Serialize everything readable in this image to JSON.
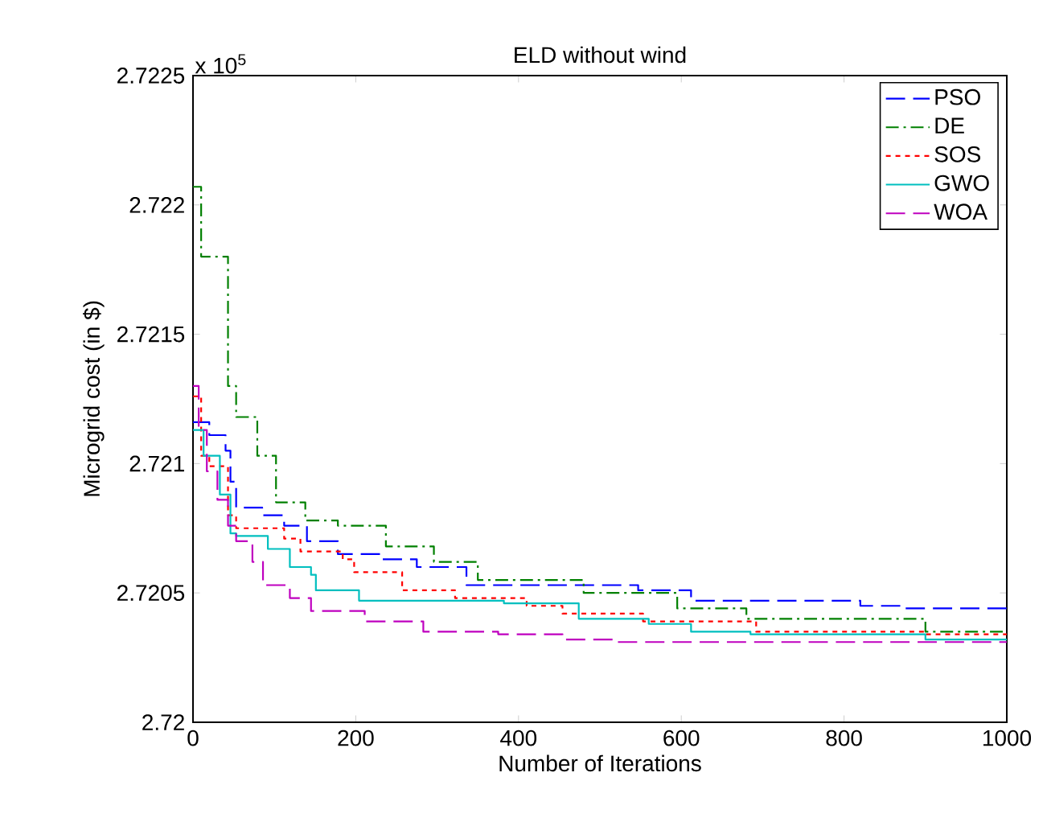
{
  "chart_data": {
    "type": "step",
    "title": "ELD without wind",
    "xlabel": "Number of Iterations",
    "ylabel": "Microgrid cost (in $)",
    "annotations": [
      "x 10$^{5}$"
    ],
    "xlim": [
      0,
      1000
    ],
    "ylim": [
      2.72,
      2.7225
    ],
    "xticks": [
      0,
      200,
      400,
      600,
      800,
      1000
    ],
    "yticks": [
      2.72,
      2.7205,
      2.721,
      2.7215,
      2.722,
      2.7225
    ],
    "grid": false,
    "legend": "top right",
    "series": [
      {
        "name": "PSO",
        "color": "#0000ff",
        "line_style": "dashed",
        "x": [
          0,
          20,
          40,
          46,
          53,
          85,
          112,
          140,
          178,
          231,
          275,
          336,
          547,
          612,
          820,
          870,
          1000
        ],
        "values": [
          2.72116,
          2.72111,
          2.72105,
          2.72093,
          2.72083,
          2.7208,
          2.72076,
          2.7207,
          2.72065,
          2.72063,
          2.7206,
          2.72053,
          2.72051,
          2.72047,
          2.72045,
          2.72044,
          2.72044
        ]
      },
      {
        "name": "DE",
        "color": "#008000",
        "line_style": "dashdot",
        "x": [
          0,
          10,
          43,
          53,
          79,
          102,
          138,
          178,
          237,
          296,
          350,
          480,
          595,
          680,
          900,
          1000
        ],
        "values": [
          2.72207,
          2.7218,
          2.7213,
          2.72118,
          2.72103,
          2.72085,
          2.72078,
          2.72076,
          2.72068,
          2.72062,
          2.72055,
          2.7205,
          2.72044,
          2.7204,
          2.72035,
          2.72035
        ]
      },
      {
        "name": "SOS",
        "color": "#ff0000",
        "line_style": "dotted",
        "x": [
          0,
          10,
          20,
          43,
          53,
          112,
          132,
          184,
          198,
          257,
          322,
          410,
          454,
          553,
          692,
          900,
          1000
        ],
        "values": [
          2.72126,
          2.72103,
          2.72099,
          2.7208,
          2.72075,
          2.72071,
          2.72066,
          2.72063,
          2.72058,
          2.72051,
          2.72048,
          2.72045,
          2.72042,
          2.72039,
          2.72035,
          2.72034,
          2.72034
        ]
      },
      {
        "name": "GWO",
        "color": "#00bfbf",
        "line_style": "solid",
        "x": [
          0,
          13,
          33,
          46,
          53,
          92,
          119,
          145,
          151,
          204,
          382,
          474,
          560,
          612,
          685,
          900,
          1000
        ],
        "values": [
          2.72113,
          2.72103,
          2.72088,
          2.72073,
          2.72072,
          2.72067,
          2.7206,
          2.72057,
          2.72051,
          2.72047,
          2.72046,
          2.7204,
          2.72038,
          2.72035,
          2.72034,
          2.72032,
          2.72032
        ]
      },
      {
        "name": "WOA",
        "color": "#bf00bf",
        "line_style": "dashed",
        "x": [
          0,
          7,
          17,
          30,
          43,
          53,
          73,
          86,
          119,
          145,
          211,
          283,
          375,
          454,
          520,
          1000
        ],
        "values": [
          2.7213,
          2.72113,
          2.72097,
          2.72086,
          2.72076,
          2.7207,
          2.72062,
          2.72053,
          2.72048,
          2.72043,
          2.72039,
          2.72035,
          2.72034,
          2.72032,
          2.72031,
          2.72031
        ]
      }
    ]
  }
}
